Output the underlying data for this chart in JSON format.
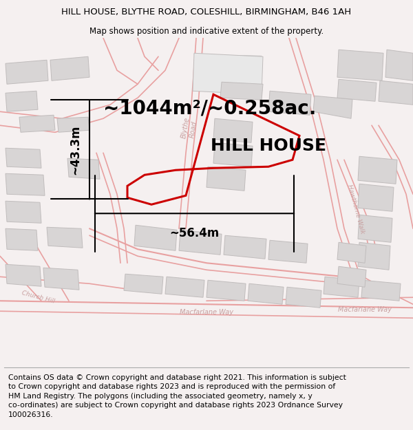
{
  "title_line1": "HILL HOUSE, BLYTHE ROAD, COLESHILL, BIRMINGHAM, B46 1AH",
  "title_line2": "Map shows position and indicative extent of the property.",
  "area_label": "~1044m²/~0.258ac.",
  "width_label": "~56.4m",
  "height_label": "~43.3m",
  "property_label": "HILL HOUSE",
  "footer_text": "Contains OS data © Crown copyright and database right 2021. This information is subject\nto Crown copyright and database rights 2023 and is reproduced with the permission of\nHM Land Registry. The polygons (including the associated geometry, namely x, y\nco-ordinates) are subject to Crown copyright and database rights 2023 Ordnance Survey\n100026316.",
  "bg_color": "#f5f0f0",
  "map_bg": "#ffffff",
  "road_line_color": "#e8a0a0",
  "building_fill": "#d8d5d5",
  "building_edge": "#c0bcbc",
  "property_color": "#cc0000",
  "dim_color": "#000000",
  "label_color": "#c8a0a0",
  "title_fs": 9.5,
  "subtitle_fs": 8.5,
  "area_fs": 20,
  "property_fs": 18,
  "dim_fs": 12,
  "footer_fs": 7.8
}
